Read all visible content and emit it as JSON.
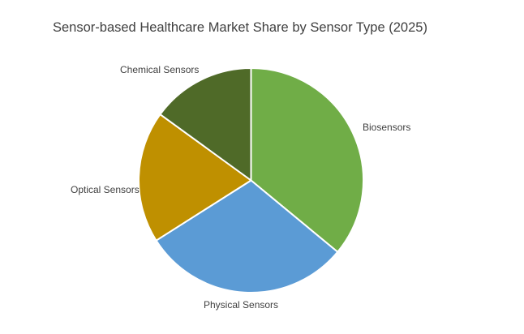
{
  "chart_data": {
    "type": "pie",
    "title": "Sensor-based Healthcare Market Share by Sensor Type (2025)",
    "categories": [
      "Biosensors",
      "Physical Sensors",
      "Optical Sensors",
      "Chemical Sensors"
    ],
    "values": [
      36,
      30,
      19,
      15
    ],
    "unit": "percent",
    "colors": [
      "#70AD47",
      "#5B9BD5",
      "#BF9000",
      "#4F6A28"
    ],
    "separator_color": "#FFFFFF",
    "text_color": "#404040",
    "background_color": "#FFFFFF",
    "start_angle_deg": 0,
    "direction": "clockwise",
    "legend": "none",
    "label_placement": "outside"
  }
}
